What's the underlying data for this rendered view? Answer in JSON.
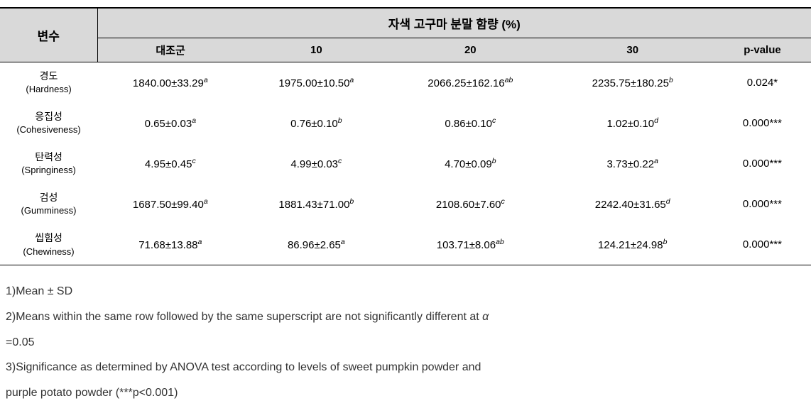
{
  "table": {
    "header": {
      "var_label": "변수",
      "group_label": "자색 고구마 분말 함량 (%)",
      "columns": [
        "대조군",
        "10",
        "20",
        "30",
        "p-value"
      ]
    },
    "rows": [
      {
        "label_main": "경도",
        "label_sub": "(Hardness)",
        "c1_val": "1840.00±33.29",
        "c1_sup": "a",
        "c2_val": "1975.00±10.50",
        "c2_sup": "a",
        "c3_val": "2066.25±162.16",
        "c3_sup": "ab",
        "c4_val": "2235.75±180.25",
        "c4_sup": "b",
        "pval": "0.024*"
      },
      {
        "label_main": "응집성",
        "label_sub": "(Cohesiveness)",
        "c1_val": "0.65±0.03",
        "c1_sup": "a",
        "c2_val": "0.76±0.10",
        "c2_sup": "b",
        "c3_val": "0.86±0.10",
        "c3_sup": "c",
        "c4_val": "1.02±0.10",
        "c4_sup": "d",
        "pval": "0.000***"
      },
      {
        "label_main": "탄력성",
        "label_sub": "(Springiness)",
        "c1_val": "4.95±0.45",
        "c1_sup": "c",
        "c2_val": "4.99±0.03",
        "c2_sup": "c",
        "c3_val": "4.70±0.09",
        "c3_sup": "b",
        "c4_val": "3.73±0.22",
        "c4_sup": "a",
        "pval": "0.000***"
      },
      {
        "label_main": "검성",
        "label_sub": "(Gumminess)",
        "c1_val": "1687.50±99.40",
        "c1_sup": "a",
        "c2_val": "1881.43±71.00",
        "c2_sup": "b",
        "c3_val": "2108.60±7.60",
        "c3_sup": "c",
        "c4_val": "2242.40±31.65",
        "c4_sup": "d",
        "pval": "0.000***"
      },
      {
        "label_main": "씹힘성",
        "label_sub": "(Chewiness)",
        "c1_val": "71.68±13.88",
        "c1_sup": "a",
        "c2_val": "86.96±2.65",
        "c2_sup": "a",
        "c3_val": "103.71±8.06",
        "c3_sup": "ab",
        "c4_val": "124.21±24.98",
        "c4_sup": "b",
        "pval": "0.000***"
      }
    ]
  },
  "footnotes": {
    "f1": "1)Mean ± SD",
    "f2a": "2)Means within the same row followed by the same superscript are not significantly different at ",
    "f2alpha": "α",
    "f2b": "=0.05",
    "f3a": "3)Significance as determined by ANOVA test according to levels of sweet pumpkin powder and",
    "f3b": "purple potato powder (***p<0.001)"
  },
  "style": {
    "header_bg": "#d9d9d9",
    "border_color": "#000000",
    "text_color": "#333333",
    "background_color": "#ffffff"
  }
}
